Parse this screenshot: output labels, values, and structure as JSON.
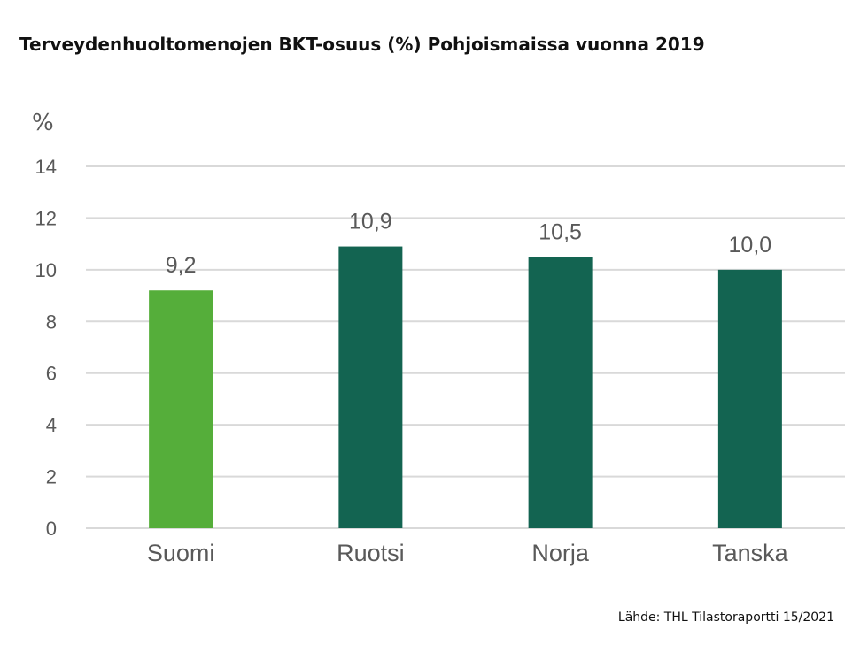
{
  "chart_data": {
    "type": "bar",
    "title": "Terveydenhuoltomenojen BKT-osuus (%) Pohjoismaissa vuonna 2019",
    "ylabel": "%",
    "xlabel": "",
    "categories": [
      "Suomi",
      "Ruotsi",
      "Norja",
      "Tanska"
    ],
    "values": [
      9.2,
      10.9,
      10.5,
      10.0
    ],
    "value_labels": [
      "9,2",
      "10,9",
      "10,5",
      "10,0"
    ],
    "ylim": [
      0,
      14
    ],
    "yticks": [
      0,
      2,
      4,
      6,
      8,
      10,
      12,
      14
    ],
    "grid": true,
    "bar_colors": [
      "#55ae3a",
      "#136451",
      "#136451",
      "#136451"
    ],
    "source": "Lähde: THL Tilastoraportti 15/2021"
  },
  "colors": {
    "highlight": "#55ae3a",
    "default_bar": "#136451",
    "grid": "#d9d9d9",
    "axis_text": "#595959"
  }
}
